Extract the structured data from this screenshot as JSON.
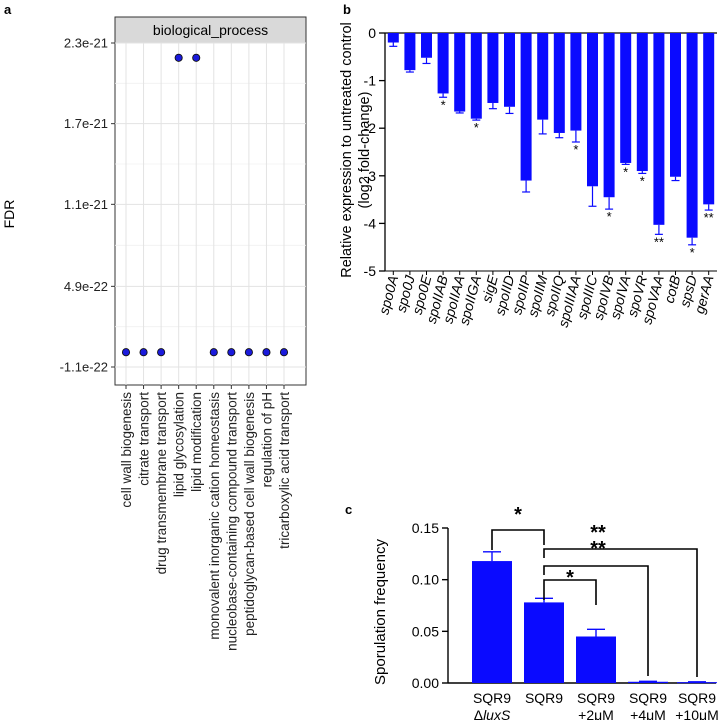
{
  "chart_data": [
    {
      "panel": "a",
      "type": "scatter",
      "strip_label": "biological_process",
      "ylabel": "FDR",
      "ylim": [
        -1.1e-22,
        2.3e-21
      ],
      "y_tick_values": [
        -1.1e-22,
        4.9e-22,
        1.1e-21,
        1.7e-21,
        2.3e-21
      ],
      "y_tick_labels": [
        "-1.1e-22",
        "4.9e-22",
        "1.1e-21",
        "1.7e-21",
        "2.3e-21"
      ],
      "categories": [
        "cell wall biogenesis",
        "citrate transport",
        "drug transmembrane transport",
        "lipid glycosylation",
        "lipid modification",
        "monovalent inorganic cation homeostasis",
        "nucleobase-containing compound transport",
        "peptidoglycan-based cell wall biogenesis",
        "regulation of pH",
        "tricarboxylic acid transport"
      ],
      "values": [
        0,
        0,
        0,
        2.19e-21,
        2.19e-21,
        0,
        0,
        0,
        0,
        0
      ],
      "point_color": "#1a1adc",
      "grid": true
    },
    {
      "panel": "b",
      "type": "bar",
      "ylabel_line1": "Relative expression to untreated control",
      "ylabel_line2": "(log2 fold-change)",
      "ylim": [
        -5,
        0
      ],
      "y_tick_values": [
        0,
        -1,
        -2,
        -3,
        -4,
        -5
      ],
      "y_tick_labels": [
        "0",
        "-1",
        "-2",
        "-3",
        "-4",
        "-5"
      ],
      "categories": [
        "spo0A",
        "spo0J",
        "spo0E",
        "spoIIAB",
        "spoIIAA",
        "spoIIGA",
        "sigE",
        "spoIID",
        "spoIIP",
        "spoIIM",
        "spoIIQ",
        "spoIIIAA",
        "spoIIIC",
        "spoIVB",
        "spoIVA",
        "spoVR",
        "spoVAA",
        "cotB",
        "spsD",
        "gerAA"
      ],
      "values": [
        -0.2,
        -0.78,
        -0.52,
        -1.27,
        -1.65,
        -1.8,
        -1.47,
        -1.55,
        -3.1,
        -1.82,
        -2.1,
        -2.05,
        -3.22,
        -3.45,
        -2.73,
        -2.9,
        -4.03,
        -3.02,
        -4.3,
        -3.6
      ],
      "errors": [
        0.08,
        0.04,
        0.12,
        0.08,
        0.03,
        0.03,
        0.12,
        0.14,
        0.24,
        0.3,
        0.1,
        0.24,
        0.42,
        0.25,
        0.03,
        0.05,
        0.2,
        0.08,
        0.15,
        0.12
      ],
      "significance": [
        "",
        "",
        "",
        "*",
        "",
        "*",
        "",
        "",
        "",
        "",
        "",
        "*",
        "",
        "*",
        "*",
        "*",
        "**",
        "",
        "*",
        "**"
      ],
      "bar_color": "#0a0aff"
    },
    {
      "panel": "c",
      "type": "bar",
      "ylabel": "Sporulation frequency",
      "ylim": [
        0,
        0.15
      ],
      "y_tick_values": [
        0,
        0.05,
        0.1,
        0.15
      ],
      "y_tick_labels": [
        "0.00",
        "0.05",
        "0.10",
        "0.15"
      ],
      "categories": [
        {
          "line1": "SQR9",
          "line2_prefix": "Δ",
          "line2_italic": "luxS"
        },
        {
          "line1": "SQR9",
          "line2_prefix": "",
          "line2_italic": ""
        },
        {
          "line1": "SQR9",
          "line2_prefix": "+2μM",
          "line2_italic": ""
        },
        {
          "line1": "SQR9",
          "line2_prefix": "+4μM",
          "line2_italic": ""
        },
        {
          "line1": "SQR9",
          "line2_prefix": "+10μM",
          "line2_italic": ""
        }
      ],
      "values": [
        0.118,
        0.078,
        0.045,
        0.0012,
        0.0008
      ],
      "errors": [
        0.009,
        0.004,
        0.007,
        0.0004,
        0.0003
      ],
      "comparisons": [
        {
          "from": 0,
          "to": 1,
          "label": "*"
        },
        {
          "from": 1,
          "to": 2,
          "label": "*"
        },
        {
          "from": 1,
          "to": 3,
          "label": "**"
        },
        {
          "from": 1,
          "to": 4,
          "label": "**"
        }
      ],
      "bar_color": "#0a0aff"
    }
  ],
  "panel_labels": {
    "a": "a",
    "b": "b",
    "c": "c"
  }
}
